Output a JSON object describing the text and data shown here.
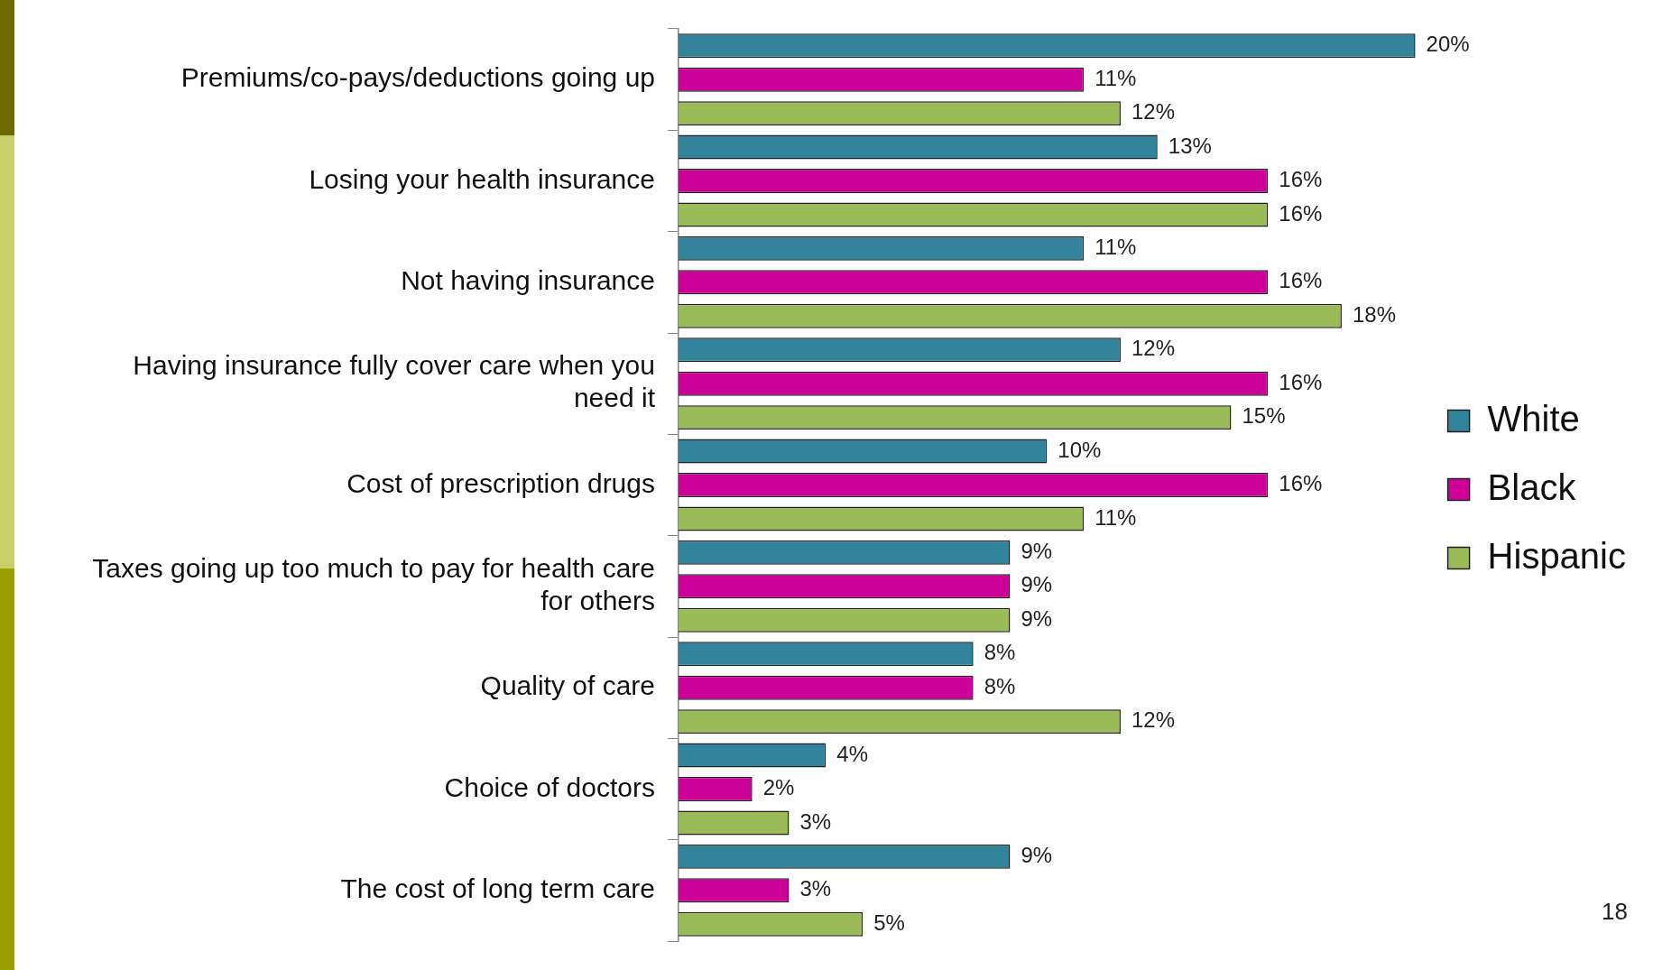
{
  "chart_data": {
    "type": "bar",
    "orientation": "horizontal",
    "categories": [
      "Premiums/co-pays/deductions going up",
      "Losing your health insurance",
      "Not having insurance",
      "Having insurance fully cover care when you need it",
      "Cost of prescription drugs",
      "Taxes going up too much to pay for health care for others",
      "Quality of care",
      "Choice of doctors",
      "The cost of long term care"
    ],
    "series": [
      {
        "name": "White",
        "color": "#31849b",
        "values": [
          20,
          13,
          11,
          12,
          10,
          9,
          8,
          4,
          9
        ],
        "value_labels": [
          "20%",
          "13%",
          "11%",
          "12%",
          "10%",
          "9%",
          "8%",
          "4%",
          "9%"
        ]
      },
      {
        "name": "Black",
        "color": "#cc0099",
        "values": [
          11,
          16,
          16,
          16,
          16,
          9,
          8,
          2,
          3
        ],
        "value_labels": [
          "11%",
          "16%",
          "16%",
          "16%",
          "16%",
          "9%",
          "8%",
          "2%",
          "3%"
        ]
      },
      {
        "name": "Hispanic",
        "color": "#9bbb59",
        "values": [
          12,
          16,
          18,
          15,
          11,
          9,
          12,
          3,
          5
        ],
        "value_labels": [
          "12%",
          "16%",
          "18%",
          "15%",
          "11%",
          "9%",
          "12%",
          "3%",
          "5%"
        ]
      }
    ],
    "legend": "right",
    "annotations": [
      "18"
    ]
  }
}
